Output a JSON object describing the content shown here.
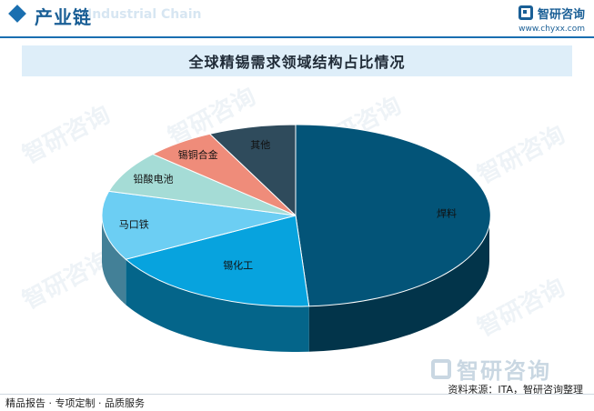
{
  "header": {
    "title": "产业链",
    "title_en": "Industrial Chain",
    "logo_text": "智研咨询",
    "logo_url": "www.chyxx.com"
  },
  "watermark_text": "智研咨询",
  "chart_data": {
    "type": "pie",
    "title": "全球精锡需求领域结构占比情况",
    "slices": [
      {
        "label": "焊料",
        "value": 48.9,
        "color": "#035478"
      },
      {
        "label": "锡化工",
        "value": 18.1,
        "color": "#07a3de"
      },
      {
        "label": "马口铁",
        "value": 12.3,
        "color": "#6ccef3"
      },
      {
        "label": "铅酸电池",
        "value": 7.5,
        "color": "#a5dcd6"
      },
      {
        "label": "锡铜合金",
        "value": 5.9,
        "color": "#ef8c7a"
      },
      {
        "label": "其他",
        "value": 7.3,
        "color": "#2f4b5c"
      }
    ],
    "legend": "none"
  },
  "source": "资料来源：ITA，智研咨询整理",
  "footer": "精品报告 · 专项定制 · 品质服务"
}
